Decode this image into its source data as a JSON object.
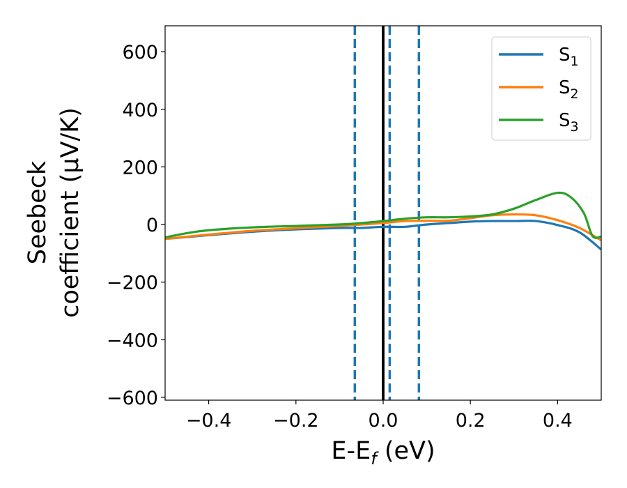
{
  "chart_data": {
    "type": "line",
    "xlabel": "E-E",
    "xlabel_sub": "f",
    "xlabel_unit": " (eV)",
    "ylabel_line1": "Seebeck",
    "ylabel_line2": "coefficient  (μV/K)",
    "xlim": [
      -0.5,
      0.5
    ],
    "ylim": [
      -610,
      690
    ],
    "xticks": [
      -0.4,
      -0.2,
      0.0,
      0.2,
      0.4
    ],
    "xtick_labels": [
      "−0.4",
      "−0.2",
      "0.0",
      "0.2",
      "0.4"
    ],
    "yticks": [
      600,
      400,
      200,
      0,
      -200,
      -400,
      -600
    ],
    "ytick_labels": [
      "600",
      "400",
      "200",
      "0",
      "−200",
      "−400",
      "−600"
    ],
    "grid": false,
    "legend_position": "top-right",
    "vertical_lines": [
      {
        "x": 0.0,
        "style": "solid",
        "color": "#000000"
      },
      {
        "x": -0.065,
        "style": "dashed",
        "color": "#1f77b4"
      },
      {
        "x": 0.015,
        "style": "dashed",
        "color": "#1f77b4"
      },
      {
        "x": 0.082,
        "style": "dashed",
        "color": "#1f77b4"
      }
    ],
    "series": [
      {
        "name": "S",
        "sub": "1",
        "color": "#1f77b4",
        "x": [
          -0.5,
          -0.4,
          -0.3,
          -0.2,
          -0.1,
          -0.05,
          0.0,
          0.05,
          0.1,
          0.15,
          0.2,
          0.25,
          0.3,
          0.35,
          0.4,
          0.45,
          0.5
        ],
        "y": [
          -50,
          -37,
          -25,
          -17,
          -12,
          -12,
          -8,
          -8,
          0,
          5,
          10,
          12,
          12,
          12,
          -2,
          -27,
          -87
        ]
      },
      {
        "name": "S",
        "sub": "2",
        "color": "#ff7f0e",
        "x": [
          -0.5,
          -0.4,
          -0.3,
          -0.2,
          -0.1,
          -0.05,
          0.0,
          0.05,
          0.1,
          0.15,
          0.2,
          0.25,
          0.3,
          0.35,
          0.4,
          0.45,
          0.5
        ],
        "y": [
          -50,
          -35,
          -22,
          -13,
          -5,
          0,
          5,
          12,
          13,
          13,
          22,
          32,
          35,
          32,
          15,
          -12,
          -55
        ]
      },
      {
        "name": "S",
        "sub": "3",
        "color": "#2ca02c",
        "x": [
          -0.5,
          -0.45,
          -0.4,
          -0.3,
          -0.2,
          -0.1,
          -0.05,
          0.0,
          0.05,
          0.1,
          0.15,
          0.2,
          0.25,
          0.3,
          0.35,
          0.4,
          0.43,
          0.46,
          0.48,
          0.5
        ],
        "y": [
          -45,
          -30,
          -20,
          -10,
          -5,
          0,
          5,
          12,
          20,
          25,
          25,
          28,
          35,
          55,
          85,
          110,
          95,
          40,
          -40,
          -42
        ]
      }
    ]
  }
}
